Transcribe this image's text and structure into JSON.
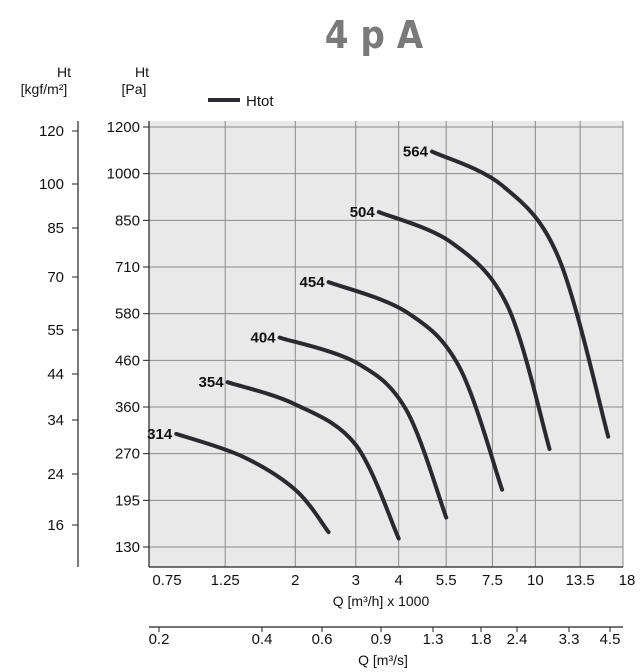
{
  "chart_data": {
    "type": "line",
    "title": "4 p A",
    "legend": {
      "label": "Htot",
      "placement": "top-left"
    },
    "grid": true,
    "y_axis_pa": {
      "label_line1": "Ht",
      "label_line2": "[Pa]",
      "scale": "log",
      "ticks": [
        1200,
        1000,
        850,
        710,
        580,
        460,
        360,
        270,
        195,
        130
      ],
      "ticks_label": [
        "1200",
        "1000",
        "850",
        "710",
        "580",
        "460",
        "360",
        "270",
        "195",
        "130"
      ]
    },
    "y_axis_kgf": {
      "label_line1": "Ht",
      "label_line2": "[kgf/m²]",
      "ticks": [
        120,
        100,
        85,
        70,
        55,
        44,
        34,
        24,
        16
      ],
      "ticks_label": [
        "120",
        "100",
        "85",
        "70",
        "55",
        "44",
        "34",
        "24",
        "16"
      ]
    },
    "x_axis_m3h": {
      "label": "Q [m³/h] x 1000",
      "scale": "log",
      "ticks": [
        0.75,
        1.25,
        2,
        3,
        4,
        5.5,
        7.5,
        10,
        13.5,
        18
      ],
      "ticks_label": [
        "0.75",
        "1.25",
        "2",
        "3",
        "4",
        "5.5",
        "7.5",
        "10",
        "13.5",
        "18"
      ]
    },
    "x_axis_m3s": {
      "label": "Q [m³/s]",
      "ticks": [
        0.2,
        0.4,
        0.6,
        0.9,
        1.3,
        1.8,
        2.4,
        3.3,
        4.5
      ],
      "ticks_label": [
        "0.2",
        "0.4",
        "0.6",
        "0.9",
        "1.3",
        "1.8",
        "2.4",
        "3.3",
        "4.5"
      ]
    },
    "series": [
      {
        "name": "314",
        "x": [
          0.9,
          1.4,
          2.0,
          2.5
        ],
        "y": [
          305,
          265,
          210,
          148
        ]
      },
      {
        "name": "354",
        "x": [
          1.27,
          2.0,
          3.0,
          4.0
        ],
        "y": [
          410,
          365,
          285,
          140
        ]
      },
      {
        "name": "404",
        "x": [
          1.8,
          3.0,
          4.2,
          5.5
        ],
        "y": [
          515,
          455,
          355,
          168
        ]
      },
      {
        "name": "454",
        "x": [
          2.5,
          4.2,
          6.0,
          8.0
        ],
        "y": [
          665,
          585,
          445,
          210
        ]
      },
      {
        "name": "504",
        "x": [
          3.5,
          5.7,
          8.3,
          11.0
        ],
        "y": [
          875,
          780,
          600,
          278
        ]
      },
      {
        "name": "564",
        "x": [
          5.0,
          8.0,
          11.7,
          16.3
        ],
        "y": [
          1090,
          960,
          735,
          300
        ]
      }
    ]
  }
}
